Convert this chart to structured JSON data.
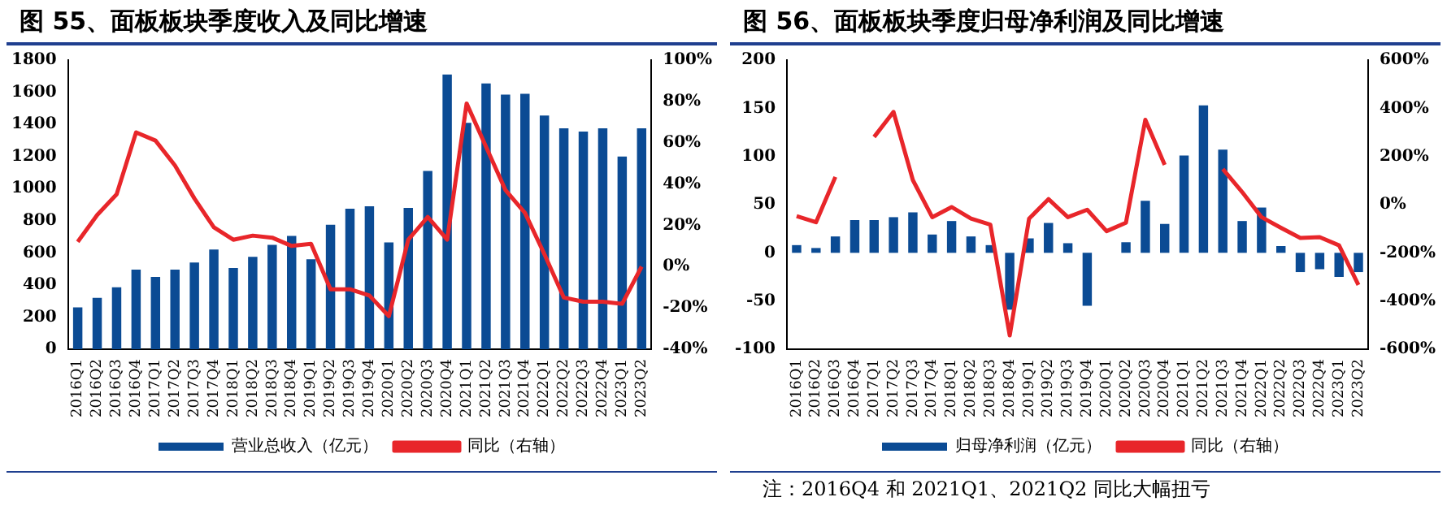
{
  "chart_data": [
    {
      "type": "bar",
      "title": "图 55、面板板块季度收入及同比增速",
      "categories": [
        "2016Q1",
        "2016Q2",
        "2016Q3",
        "2016Q4",
        "2017Q1",
        "2017Q2",
        "2017Q3",
        "2017Q4",
        "2018Q1",
        "2018Q2",
        "2018Q3",
        "2018Q4",
        "2019Q1",
        "2019Q2",
        "2019Q3",
        "2019Q4",
        "2020Q1",
        "2020Q2",
        "2020Q3",
        "2020Q4",
        "2021Q1",
        "2021Q2",
        "2021Q3",
        "2021Q4",
        "2022Q1",
        "2022Q2",
        "2022Q3",
        "2022Q4",
        "2023Q1",
        "2023Q2"
      ],
      "series": [
        {
          "name": "营业总收入（亿元）",
          "color": "#0b4b94",
          "values": [
            260,
            320,
            385,
            495,
            450,
            495,
            540,
            620,
            505,
            575,
            650,
            705,
            560,
            775,
            875,
            890,
            665,
            880,
            1110,
            1710,
            1410,
            1655,
            1585,
            1590,
            1455,
            1375,
            1355,
            1375,
            1200,
            1375
          ]
        },
        {
          "name": "同比（右轴）",
          "type": "line",
          "axis": "y2",
          "color": "#e8262a",
          "values": [
            12,
            25,
            35,
            65,
            61,
            49,
            33,
            19,
            13,
            15,
            14,
            10,
            11,
            -11,
            -11,
            -14,
            -24,
            13,
            24,
            13,
            79,
            58,
            37,
            26,
            6,
            -15,
            -17,
            -17,
            -18,
            0
          ]
        }
      ],
      "ylim": [
        0,
        1800
      ],
      "yticks": [
        0,
        200,
        400,
        600,
        800,
        1000,
        1200,
        1400,
        1600,
        1800
      ],
      "y2lim": [
        -40,
        100
      ],
      "y2ticks": [
        {
          "value": -40,
          "label": "-40%"
        },
        {
          "value": -20,
          "label": "-20%"
        },
        {
          "value": 0,
          "label": "0%"
        },
        {
          "value": 20,
          "label": "20%"
        },
        {
          "value": 40,
          "label": "40%"
        },
        {
          "value": 60,
          "label": "60%"
        },
        {
          "value": 80,
          "label": "80%"
        },
        {
          "value": 100,
          "label": "100%"
        }
      ],
      "grid": false,
      "legend": "bottom",
      "marker": "none"
    },
    {
      "type": "bar",
      "title": "图 56、面板板块季度归母净利润及同比增速",
      "categories": [
        "2016Q1",
        "2016Q2",
        "2016Q3",
        "2016Q4",
        "2017Q1",
        "2017Q2",
        "2017Q3",
        "2017Q4",
        "2018Q1",
        "2018Q2",
        "2018Q3",
        "2018Q4",
        "2019Q1",
        "2019Q2",
        "2019Q3",
        "2019Q4",
        "2020Q1",
        "2020Q2",
        "2020Q3",
        "2020Q4",
        "2021Q1",
        "2021Q2",
        "2021Q3",
        "2021Q4",
        "2022Q1",
        "2022Q2",
        "2022Q3",
        "2022Q4",
        "2023Q1",
        "2023Q2"
      ],
      "series": [
        {
          "name": "归母净利润（亿元）",
          "color": "#0b4b94",
          "values": [
            8,
            5,
            17,
            34,
            34,
            37,
            42,
            19,
            33,
            17,
            8,
            -59,
            15,
            31,
            10,
            -55,
            0,
            11,
            54,
            30,
            101,
            153,
            107,
            33,
            47,
            7,
            -20,
            -17,
            -25,
            -20
          ]
        },
        {
          "name": "同比（右轴）",
          "type": "line",
          "axis": "y2",
          "color": "#e8262a",
          "values": [
            -48,
            -73,
            115,
            null,
            281,
            385,
            102,
            -52,
            -10,
            -58,
            -83,
            -543,
            -58,
            23,
            -52,
            -21,
            -110,
            -75,
            352,
            165,
            null,
            null,
            148,
            52,
            -52,
            -96,
            -138,
            -135,
            -169,
            -333
          ]
        }
      ],
      "ylim": [
        -100,
        200
      ],
      "yticks": [
        -100,
        -50,
        0,
        50,
        100,
        150,
        200
      ],
      "y2lim": [
        -600,
        600
      ],
      "y2ticks": [
        {
          "value": -600,
          "label": "-600%"
        },
        {
          "value": -400,
          "label": "-400%"
        },
        {
          "value": -200,
          "label": "-200%"
        },
        {
          "value": 0,
          "label": "0%"
        },
        {
          "value": 200,
          "label": "200%"
        },
        {
          "value": 400,
          "label": "400%"
        },
        {
          "value": 600,
          "label": "600%"
        }
      ],
      "annotations": [
        "注：2016Q4 和 2021Q1、2021Q2 同比大幅扭亏"
      ],
      "grid": false,
      "legend": "bottom",
      "marker": "none"
    }
  ]
}
